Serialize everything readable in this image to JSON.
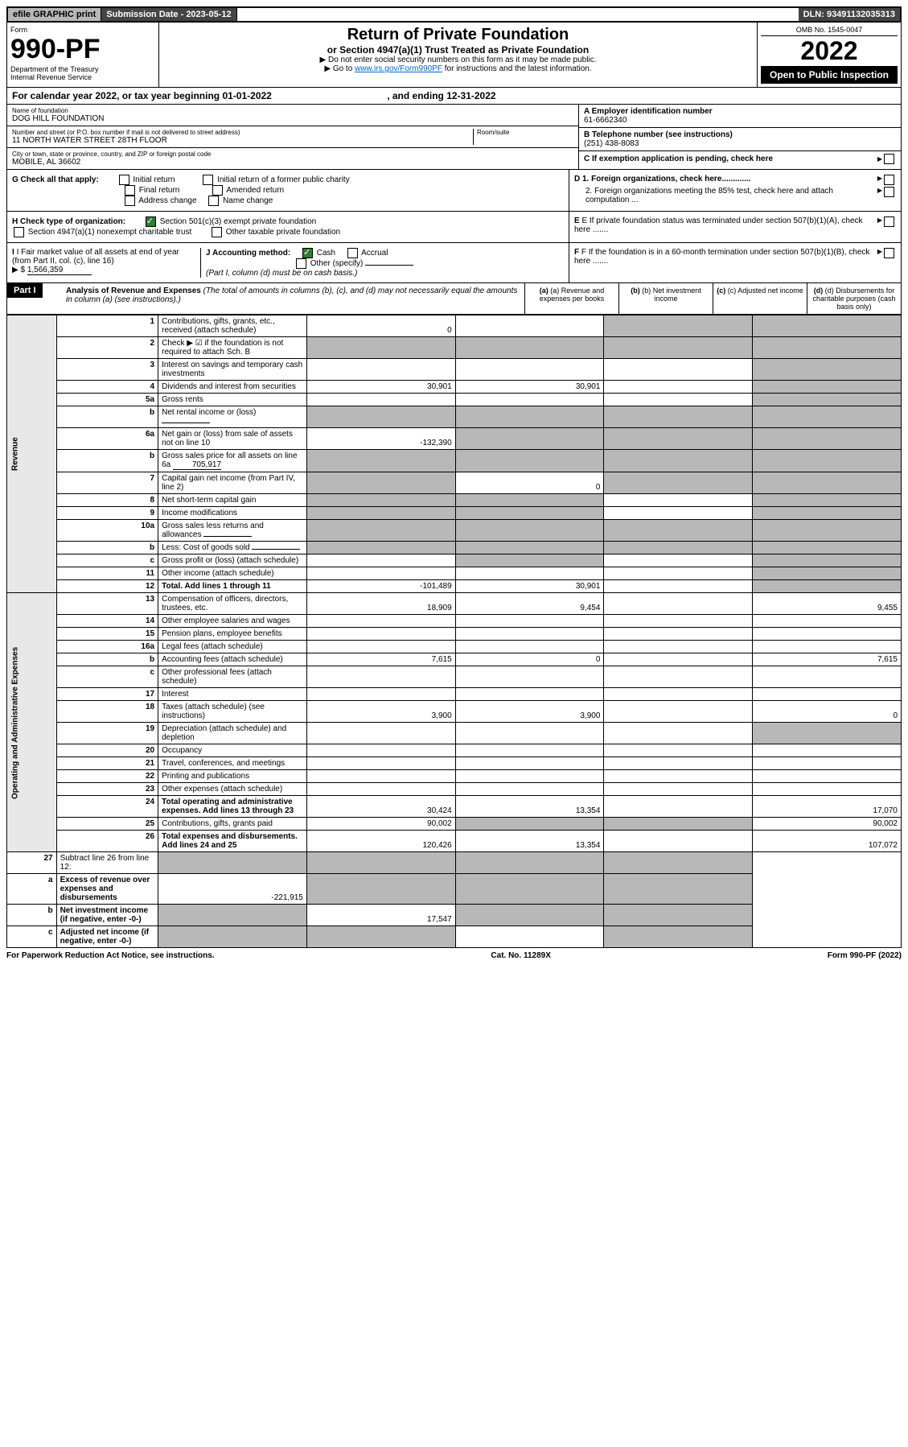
{
  "topbar": {
    "efile": "efile GRAPHIC print",
    "sub_label": "Submission Date - 2023-05-12",
    "dln": "DLN: 93491132035313"
  },
  "header": {
    "form_word": "Form",
    "form_num": "990-PF",
    "dept": "Department of the Treasury",
    "irs": "Internal Revenue Service",
    "title": "Return of Private Foundation",
    "subtitle": "or Section 4947(a)(1) Trust Treated as Private Foundation",
    "instr1": "▶ Do not enter social security numbers on this form as it may be made public.",
    "instr2_pre": "▶ Go to ",
    "instr2_link": "www.irs.gov/Form990PF",
    "instr2_post": " for instructions and the latest information.",
    "omb": "OMB No. 1545-0047",
    "year": "2022",
    "open": "Open to Public Inspection"
  },
  "calyear": {
    "text_pre": "For calendar year 2022, or tax year beginning ",
    "begin": "01-01-2022",
    "text_mid": " , and ending ",
    "end": "12-31-2022"
  },
  "entity": {
    "name_label": "Name of foundation",
    "name": "DOG HILL FOUNDATION",
    "addr_label": "Number and street (or P.O. box number if mail is not delivered to street address)",
    "addr": "11 NORTH WATER STREET 28TH FLOOR",
    "room_label": "Room/suite",
    "room": "",
    "city_label": "City or town, state or province, country, and ZIP or foreign postal code",
    "city": "MOBILE, AL  36602",
    "a_label": "A Employer identification number",
    "a_val": "61-6662340",
    "b_label": "B Telephone number (see instructions)",
    "b_val": "(251) 438-8083",
    "c_label": "C If exemption application is pending, check here"
  },
  "g": {
    "label": "G Check all that apply:",
    "opts": [
      "Initial return",
      "Final return",
      "Address change",
      "Initial return of a former public charity",
      "Amended return",
      "Name change"
    ]
  },
  "h": {
    "label": "H Check type of organization:",
    "opt1": "Section 501(c)(3) exempt private foundation",
    "opt2": "Section 4947(a)(1) nonexempt charitable trust",
    "opt3": "Other taxable private foundation"
  },
  "i": {
    "label": "I Fair market value of all assets at end of year (from Part II, col. (c), line 16)",
    "arrow": "▶ $",
    "val": "1,566,359"
  },
  "j": {
    "label": "J Accounting method:",
    "cash": "Cash",
    "accrual": "Accrual",
    "other": "Other (specify)",
    "note": "(Part I, column (d) must be on cash basis.)"
  },
  "d": {
    "d1": "D 1. Foreign organizations, check here.............",
    "d2": "2. Foreign organizations meeting the 85% test, check here and attach computation ..."
  },
  "e": {
    "label": "E  If private foundation status was terminated under section 507(b)(1)(A), check here ......."
  },
  "f": {
    "label": "F  If the foundation is in a 60-month termination under section 507(b)(1)(B), check here ......."
  },
  "part1": {
    "header": "Part I",
    "title": "Analysis of Revenue and Expenses",
    "title_note": " (The total of amounts in columns (b), (c), and (d) may not necessarily equal the amounts in column (a) (see instructions).)",
    "col_a": "(a) Revenue and expenses per books",
    "col_b": "(b) Net investment income",
    "col_c": "(c) Adjusted net income",
    "col_d": "(d) Disbursements for charitable purposes (cash basis only)"
  },
  "side": {
    "revenue": "Revenue",
    "expenses": "Operating and Administrative Expenses"
  },
  "rows": [
    {
      "n": "1",
      "d": "Contributions, gifts, grants, etc., received (attach schedule)",
      "a": "0",
      "b": "",
      "c": "S",
      "dS": "S"
    },
    {
      "n": "2",
      "d": "Check ▶ ☑ if the foundation is not required to attach Sch. B",
      "a": "S",
      "b": "S",
      "c": "S",
      "dS": "S",
      "bold_not": true
    },
    {
      "n": "3",
      "d": "Interest on savings and temporary cash investments",
      "a": "",
      "b": "",
      "c": "",
      "dS": "S"
    },
    {
      "n": "4",
      "d": "Dividends and interest from securities",
      "a": "30,901",
      "b": "30,901",
      "c": "",
      "dS": "S"
    },
    {
      "n": "5a",
      "d": "Gross rents",
      "a": "",
      "b": "",
      "c": "",
      "dS": "S"
    },
    {
      "n": "b",
      "d": "Net rental income or (loss)",
      "a": "S",
      "b": "S",
      "c": "S",
      "dS": "S",
      "inline": true
    },
    {
      "n": "6a",
      "d": "Net gain or (loss) from sale of assets not on line 10",
      "a": "-132,390",
      "b": "S",
      "c": "S",
      "dS": "S"
    },
    {
      "n": "b",
      "d": "Gross sales price for all assets on line 6a",
      "a": "S",
      "b": "S",
      "c": "S",
      "dS": "S",
      "inline_val": "705,917"
    },
    {
      "n": "7",
      "d": "Capital gain net income (from Part IV, line 2)",
      "a": "S",
      "b": "0",
      "c": "S",
      "dS": "S"
    },
    {
      "n": "8",
      "d": "Net short-term capital gain",
      "a": "S",
      "b": "S",
      "c": "",
      "dS": "S"
    },
    {
      "n": "9",
      "d": "Income modifications",
      "a": "S",
      "b": "S",
      "c": "",
      "dS": "S"
    },
    {
      "n": "10a",
      "d": "Gross sales less returns and allowances",
      "a": "S",
      "b": "S",
      "c": "S",
      "dS": "S",
      "inline": true
    },
    {
      "n": "b",
      "d": "Less: Cost of goods sold",
      "a": "S",
      "b": "S",
      "c": "S",
      "dS": "S",
      "inline": true
    },
    {
      "n": "c",
      "d": "Gross profit or (loss) (attach schedule)",
      "a": "",
      "b": "S",
      "c": "",
      "dS": "S"
    },
    {
      "n": "11",
      "d": "Other income (attach schedule)",
      "a": "",
      "b": "",
      "c": "",
      "dS": "S"
    },
    {
      "n": "12",
      "d": "Total. Add lines 1 through 11",
      "a": "-101,489",
      "b": "30,901",
      "c": "",
      "dS": "S",
      "bold": true
    }
  ],
  "exp_rows": [
    {
      "n": "13",
      "d": "Compensation of officers, directors, trustees, etc.",
      "a": "18,909",
      "b": "9,454",
      "c": "",
      "dS": "9,455"
    },
    {
      "n": "14",
      "d": "Other employee salaries and wages",
      "a": "",
      "b": "",
      "c": "",
      "dS": ""
    },
    {
      "n": "15",
      "d": "Pension plans, employee benefits",
      "a": "",
      "b": "",
      "c": "",
      "dS": ""
    },
    {
      "n": "16a",
      "d": "Legal fees (attach schedule)",
      "a": "",
      "b": "",
      "c": "",
      "dS": ""
    },
    {
      "n": "b",
      "d": "Accounting fees (attach schedule)",
      "a": "7,615",
      "b": "0",
      "c": "",
      "dS": "7,615"
    },
    {
      "n": "c",
      "d": "Other professional fees (attach schedule)",
      "a": "",
      "b": "",
      "c": "",
      "dS": ""
    },
    {
      "n": "17",
      "d": "Interest",
      "a": "",
      "b": "",
      "c": "",
      "dS": ""
    },
    {
      "n": "18",
      "d": "Taxes (attach schedule) (see instructions)",
      "a": "3,900",
      "b": "3,900",
      "c": "",
      "dS": "0"
    },
    {
      "n": "19",
      "d": "Depreciation (attach schedule) and depletion",
      "a": "",
      "b": "",
      "c": "",
      "dS": "S"
    },
    {
      "n": "20",
      "d": "Occupancy",
      "a": "",
      "b": "",
      "c": "",
      "dS": ""
    },
    {
      "n": "21",
      "d": "Travel, conferences, and meetings",
      "a": "",
      "b": "",
      "c": "",
      "dS": ""
    },
    {
      "n": "22",
      "d": "Printing and publications",
      "a": "",
      "b": "",
      "c": "",
      "dS": ""
    },
    {
      "n": "23",
      "d": "Other expenses (attach schedule)",
      "a": "",
      "b": "",
      "c": "",
      "dS": ""
    },
    {
      "n": "24",
      "d": "Total operating and administrative expenses. Add lines 13 through 23",
      "a": "30,424",
      "b": "13,354",
      "c": "",
      "dS": "17,070",
      "bold": true
    },
    {
      "n": "25",
      "d": "Contributions, gifts, grants paid",
      "a": "90,002",
      "b": "S",
      "c": "S",
      "dS": "90,002"
    },
    {
      "n": "26",
      "d": "Total expenses and disbursements. Add lines 24 and 25",
      "a": "120,426",
      "b": "13,354",
      "c": "",
      "dS": "107,072",
      "bold": true
    }
  ],
  "bottom_rows": [
    {
      "n": "27",
      "d": "Subtract line 26 from line 12:",
      "a": "S",
      "b": "S",
      "c": "S",
      "dS": "S"
    },
    {
      "n": "a",
      "d": "Excess of revenue over expenses and disbursements",
      "a": "-221,915",
      "b": "S",
      "c": "S",
      "dS": "S",
      "bold": true
    },
    {
      "n": "b",
      "d": "Net investment income (if negative, enter -0-)",
      "a": "S",
      "b": "17,547",
      "c": "S",
      "dS": "S",
      "bold": true
    },
    {
      "n": "c",
      "d": "Adjusted net income (if negative, enter -0-)",
      "a": "S",
      "b": "S",
      "c": "",
      "dS": "S",
      "bold": true
    }
  ],
  "footer": {
    "left": "For Paperwork Reduction Act Notice, see instructions.",
    "mid": "Cat. No. 11289X",
    "right": "Form 990-PF (2022)"
  }
}
